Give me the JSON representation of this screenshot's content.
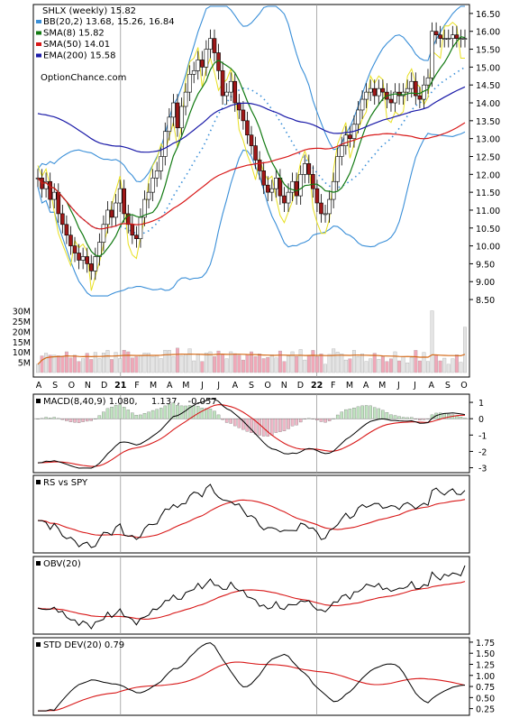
{
  "chart_data": [
    {
      "type": "candlestick",
      "title": "SHLX (weekly) 15.82",
      "watermark": "OptionChance.com",
      "legend": [
        {
          "label": "BB(20,2) 13.68, 15.26, 16.84",
          "color": "#3a8fd8"
        },
        {
          "label": "SMA(8) 15.82",
          "color": "#127a12"
        },
        {
          "label": "SMA(50) 14.01",
          "color": "#d81818"
        },
        {
          "label": "EMA(200) 15.58",
          "color": "#1a1aa8"
        }
      ],
      "y_ticks": [
        "16.50",
        "16.00",
        "15.50",
        "15.00",
        "14.50",
        "14.00",
        "13.50",
        "13.00",
        "12.50",
        "12.00",
        "11.50",
        "11.00",
        "10.50",
        "10.00",
        "9.50",
        "9.00",
        "8.50"
      ],
      "ylim": [
        8.3,
        16.75
      ],
      "volume_ticks": [
        "30M",
        "25M",
        "20M",
        "15M",
        "10M",
        "5M"
      ],
      "x_labels": [
        "A",
        "S",
        "O",
        "N",
        "D",
        "21",
        "F",
        "M",
        "A",
        "M",
        "J",
        "J",
        "A",
        "S",
        "O",
        "N",
        "D",
        "22",
        "F",
        "M",
        "A",
        "M",
        "J",
        "J",
        "A",
        "S",
        "O"
      ],
      "weekly_close": [
        11.9,
        11.6,
        11.8,
        11.3,
        11.5,
        10.9,
        10.6,
        10.3,
        10.0,
        9.8,
        9.6,
        9.7,
        9.5,
        9.3,
        9.7,
        10.1,
        10.6,
        11.0,
        10.8,
        11.2,
        11.6,
        10.9,
        10.6,
        10.3,
        10.2,
        10.8,
        11.3,
        11.5,
        11.9,
        12.1,
        12.5,
        13.2,
        13.6,
        14.0,
        13.3,
        13.9,
        14.3,
        14.8,
        14.9,
        15.2,
        15.0,
        15.5,
        15.8,
        15.4,
        14.9,
        14.2,
        14.3,
        14.6,
        14.0,
        13.8,
        13.5,
        13.1,
        12.8,
        12.4,
        12.1,
        11.7,
        11.5,
        11.6,
        11.9,
        11.4,
        11.2,
        11.5,
        11.8,
        11.4,
        12.0,
        12.3,
        12.0,
        11.6,
        11.2,
        10.9,
        10.9,
        11.3,
        11.8,
        12.5,
        12.8,
        13.1,
        13.0,
        13.4,
        13.8,
        14.1,
        14.3,
        14.4,
        14.2,
        14.4,
        14.3,
        14.1,
        14.0,
        14.3,
        14.2,
        14.3,
        14.4,
        14.6,
        14.2,
        14.1,
        14.5,
        14.7,
        16.0,
        15.9,
        15.8,
        15.8,
        15.8,
        15.9,
        15.8,
        15.8,
        15.8
      ]
    },
    {
      "type": "line",
      "title": "MACD(8,40,9) 1.080, 1.137, -0.057",
      "legend_parts": [
        {
          "text": "MACD(8,40,9) 1.080,",
          "color": "#000000"
        },
        {
          "text": "1.137,",
          "color": "#d81818"
        },
        {
          "text": "-0.057",
          "color": "#1a1aa8"
        }
      ],
      "y_ticks": [
        "1",
        "0",
        "-1",
        "-2",
        "-3"
      ],
      "ylim": [
        -3.3,
        1.5
      ]
    },
    {
      "type": "line",
      "title": "RS vs SPY",
      "legend_parts": [
        {
          "text": "RS vs SPY",
          "color": "#000000"
        }
      ]
    },
    {
      "type": "line",
      "title": "OBV(20)",
      "legend_parts": [
        {
          "text": "OBV(20)",
          "color": "#000000"
        }
      ]
    },
    {
      "type": "line",
      "title": "STD DEV(20) 0.79",
      "legend_parts": [
        {
          "text": "STD DEV(20) 0.79",
          "color": "#000000"
        }
      ],
      "y_ticks": [
        "1.75",
        "1.50",
        "1.25",
        "1.00",
        "0.75",
        "0.50",
        "0.25"
      ],
      "ylim": [
        0.1,
        1.85
      ]
    }
  ]
}
